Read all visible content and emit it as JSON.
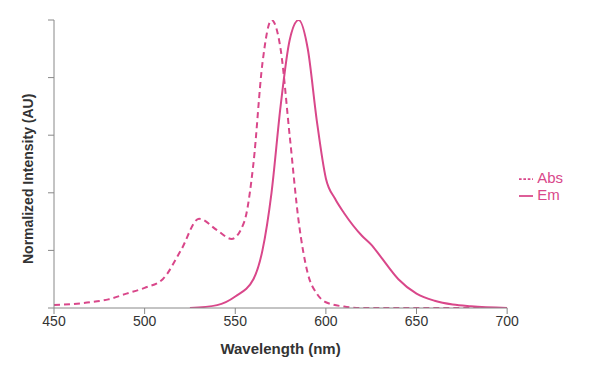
{
  "chart_data": {
    "type": "line",
    "x_label": "Wavelength (nm)",
    "y_label": "Normalized Intensity (AU)",
    "xlim": [
      450,
      700
    ],
    "xticks": [
      450,
      500,
      550,
      600,
      650,
      700
    ],
    "ylim": [
      0,
      1
    ],
    "yticks": [
      0,
      0.2,
      0.4,
      0.6,
      0.8,
      1
    ],
    "tick_labels": "x",
    "grid": false,
    "legend": "right",
    "series": [
      {
        "name": "Abs",
        "color": "#d9478a",
        "line_style": "dashed",
        "x": [
          450,
          470,
          480,
          490,
          500,
          510,
          520,
          530,
          540,
          548,
          555,
          560,
          565,
          570,
          575,
          580,
          585,
          590,
          595,
          600,
          610,
          620,
          700
        ],
        "values": [
          0.01,
          0.02,
          0.03,
          0.05,
          0.07,
          0.1,
          0.2,
          0.31,
          0.27,
          0.24,
          0.3,
          0.5,
          0.85,
          1.0,
          0.9,
          0.6,
          0.3,
          0.12,
          0.05,
          0.02,
          0.005,
          0,
          0
        ]
      },
      {
        "name": "Em",
        "color": "#d9478a",
        "line_style": "solid",
        "x": [
          525,
          540,
          550,
          560,
          565,
          570,
          575,
          580,
          585,
          590,
          595,
          600,
          605,
          610,
          620,
          625,
          630,
          640,
          650,
          660,
          670,
          680,
          700
        ],
        "values": [
          0,
          0.01,
          0.04,
          0.1,
          0.2,
          0.4,
          0.7,
          0.93,
          1.0,
          0.9,
          0.65,
          0.45,
          0.38,
          0.33,
          0.25,
          0.22,
          0.18,
          0.1,
          0.05,
          0.025,
          0.012,
          0.006,
          0
        ]
      }
    ]
  }
}
